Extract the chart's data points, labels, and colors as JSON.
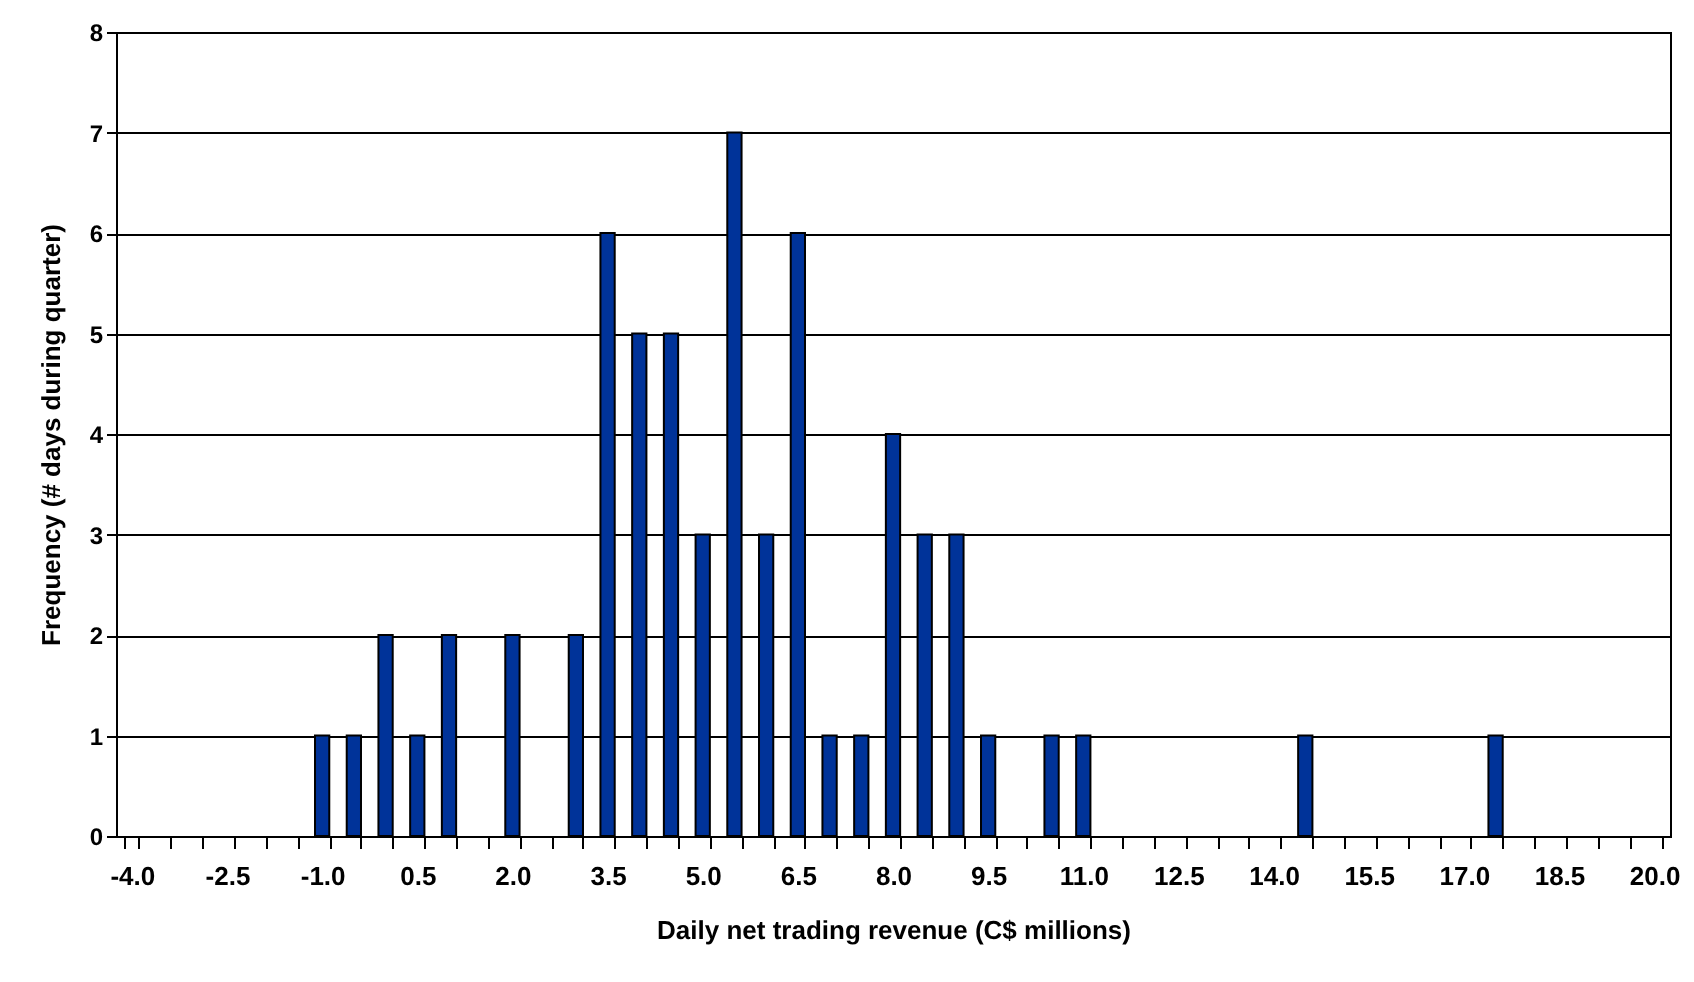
{
  "chart_data": {
    "type": "bar",
    "categories": [
      "-4.0",
      null,
      null,
      "-2.5",
      null,
      null,
      "-1.0",
      null,
      null,
      "0.5",
      null,
      null,
      "2.0",
      null,
      null,
      "3.5",
      null,
      null,
      "5.0",
      null,
      null,
      "6.5",
      null,
      null,
      "8.0",
      null,
      null,
      "9.5",
      null,
      null,
      "11.0",
      null,
      null,
      "12.5",
      null,
      null,
      "14.0",
      null,
      null,
      "15.5",
      null,
      null,
      "17.0",
      null,
      null,
      "18.5",
      null,
      null,
      "20.0"
    ],
    "values": [
      0,
      0,
      0,
      0,
      0,
      0,
      1,
      1,
      2,
      1,
      2,
      0,
      2,
      0,
      2,
      6,
      5,
      5,
      3,
      7,
      3,
      6,
      1,
      1,
      4,
      3,
      3,
      1,
      0,
      1,
      1,
      0,
      0,
      0,
      0,
      0,
      0,
      1,
      0,
      0,
      0,
      0,
      0,
      1,
      0,
      0,
      0,
      0,
      0
    ],
    "color": "#003399",
    "xlabel": "Daily net trading revenue (C$ millions)",
    "ylabel": "Frequency (# days during quarter)",
    "ylim": [
      0,
      8
    ],
    "yticks": [
      0,
      1,
      2,
      3,
      4,
      5,
      6,
      7,
      8
    ],
    "grid": "y"
  }
}
